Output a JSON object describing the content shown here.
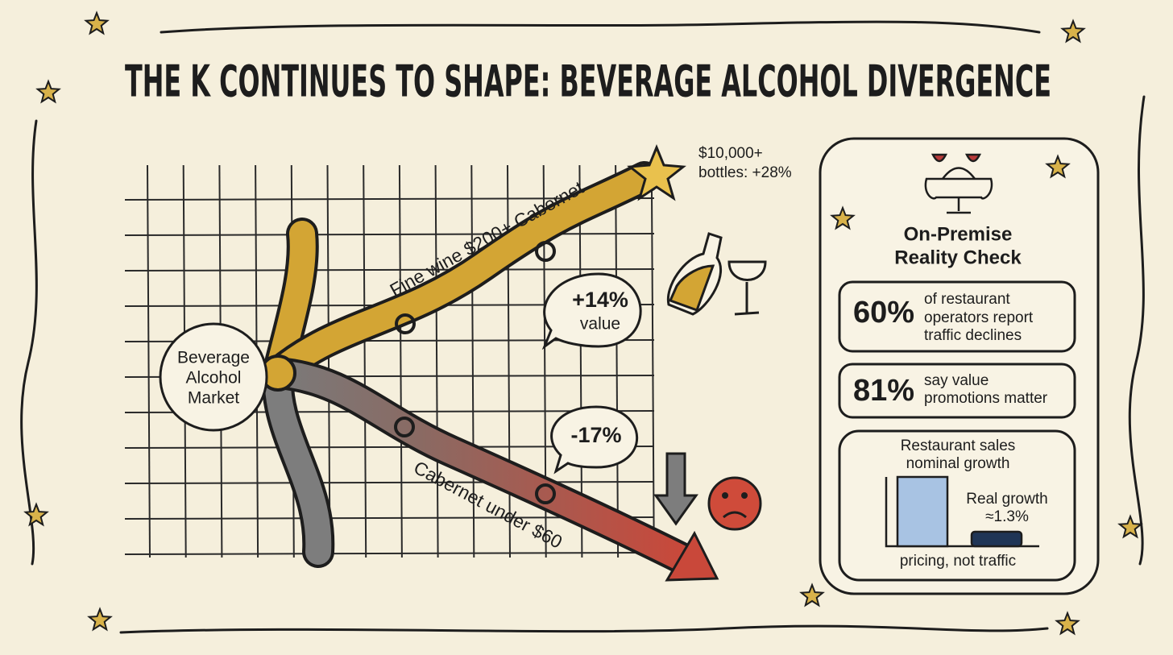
{
  "title": "THE K CONTINUES TO SHAPE: BEVERAGE ALCOHOL DIVERGENCE",
  "diagram": {
    "hub": {
      "lines": [
        "Beverage",
        "Alcohol",
        "Market"
      ]
    },
    "upper_branch": {
      "label": "Fine wine $200+ Cabernet",
      "bubble": {
        "lines": [
          "+14%",
          "value"
        ]
      },
      "callout": {
        "lines": [
          "$10,000+",
          "bottles: +28%"
        ]
      }
    },
    "lower_branch": {
      "label": "Cabernet under $60",
      "bubble": {
        "lines": [
          "-17%"
        ]
      }
    }
  },
  "panel": {
    "title": {
      "lines": [
        "On-Premise",
        "Reality Check"
      ]
    },
    "stats": [
      {
        "figure": "60%",
        "lines": [
          "of restaurant",
          "operators report",
          "traffic declines"
        ]
      },
      {
        "figure": "81%",
        "lines": [
          "say value",
          "promotions matter"
        ]
      }
    ],
    "growth_box": {
      "heading": {
        "lines": [
          "Restaurant sales",
          "nominal growth"
        ]
      },
      "real": {
        "lines": [
          "Real growth",
          "≈1.3%"
        ]
      },
      "footer": "pricing, not traffic"
    }
  }
}
